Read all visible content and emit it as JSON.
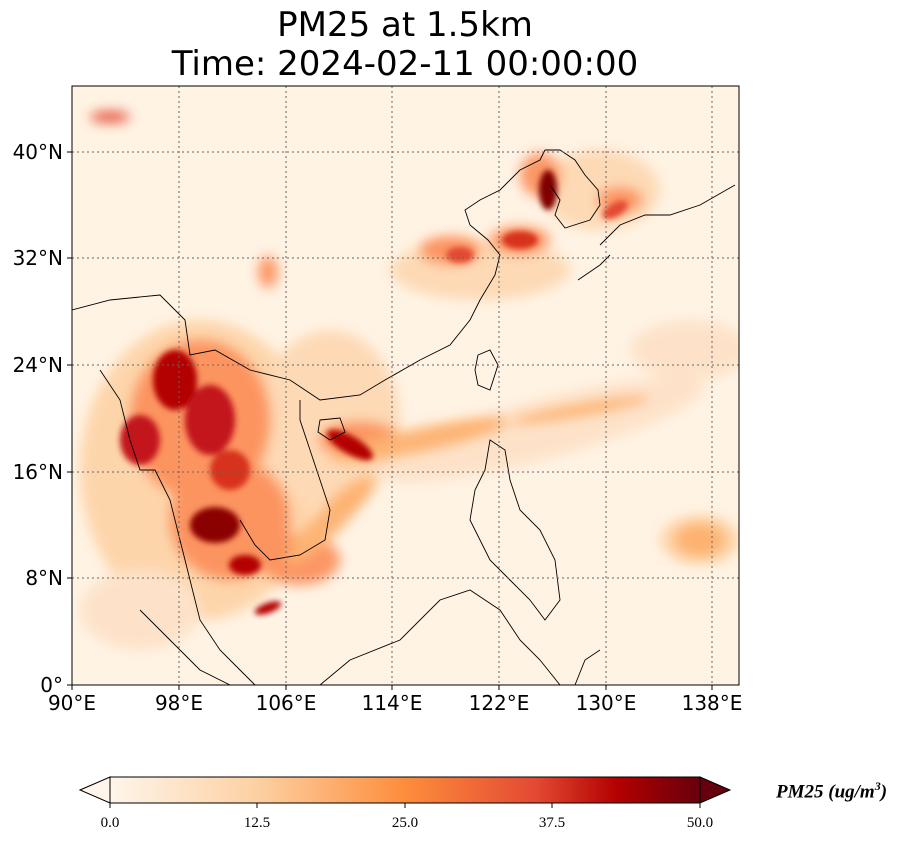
{
  "title": {
    "line1": "PM25 at 1.5km",
    "line2": "Time: 2024-02-11 00:00:00"
  },
  "map": {
    "extent": {
      "lon": [
        90,
        140
      ],
      "lat": [
        0,
        45
      ]
    },
    "lon_ticks": [
      "90°E",
      "98°E",
      "106°E",
      "114°E",
      "122°E",
      "130°E",
      "138°E"
    ],
    "lat_ticks": [
      "40°N",
      "32°N",
      "24°N",
      "16°N",
      "8°N",
      "0°"
    ],
    "gridlines": true
  },
  "colorbar": {
    "label_text": "PM25 (ug/m",
    "label_superscript": "3",
    "label_close": ")",
    "ticks": [
      "0.0",
      "12.5",
      "25.0",
      "37.5",
      "50.0"
    ],
    "range": [
      0,
      50
    ],
    "colors": [
      "#fff5eb",
      "#fdd0a2",
      "#fd8d3c",
      "#d94801",
      "#a50f15",
      "#67000d"
    ]
  }
}
